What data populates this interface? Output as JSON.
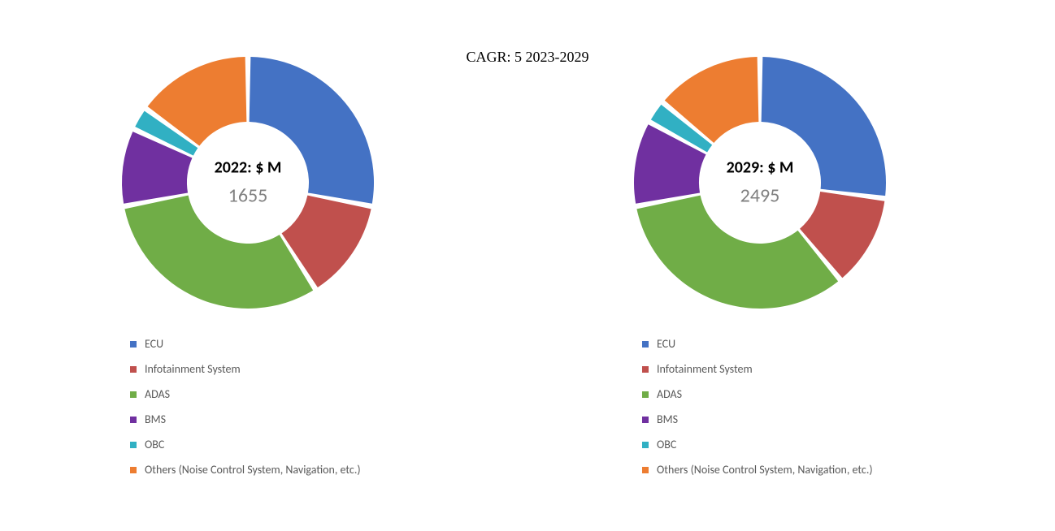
{
  "cagr_text": "CAGR:   5        2023-2029",
  "charts": [
    {
      "id": "chart_2022",
      "type": "donut",
      "center_label": "2022: $ M",
      "center_value": "1655",
      "background_color": "#ffffff",
      "outer_radius": 155,
      "inner_radius": 75,
      "slice_gap_deg": 2.5,
      "start_angle_deg": -90,
      "center_label_fontsize": 20,
      "center_value_fontsize": 24,
      "center_value_color": "#808080",
      "legend_fontsize": 14,
      "legend_color": "#595959",
      "slices": [
        {
          "label": "ECU",
          "value": 28,
          "color": "#4472c4"
        },
        {
          "label": "Infotainment System",
          "value": 13,
          "color": "#c0504d"
        },
        {
          "label": "ADAS",
          "value": 31,
          "color": "#70ad47"
        },
        {
          "label": "BMS",
          "value": 10,
          "color": "#7030a0"
        },
        {
          "label": "OBC",
          "value": 3,
          "color": "#31b0c3"
        },
        {
          "label": "Others (Noise Control System, Navigation, etc.)",
          "value": 15,
          "color": "#ed7d31"
        }
      ]
    },
    {
      "id": "chart_2029",
      "type": "donut",
      "center_label": "2029: $ M",
      "center_value": "2495",
      "background_color": "#ffffff",
      "outer_radius": 155,
      "inner_radius": 75,
      "slice_gap_deg": 2.5,
      "start_angle_deg": -90,
      "center_label_fontsize": 20,
      "center_value_fontsize": 24,
      "center_value_color": "#808080",
      "legend_fontsize": 14,
      "legend_color": "#595959",
      "slices": [
        {
          "label": "ECU",
          "value": 27,
          "color": "#4472c4"
        },
        {
          "label": "Infotainment System",
          "value": 12,
          "color": "#c0504d"
        },
        {
          "label": "ADAS",
          "value": 33,
          "color": "#70ad47"
        },
        {
          "label": "BMS",
          "value": 11,
          "color": "#7030a0"
        },
        {
          "label": "OBC",
          "value": 3,
          "color": "#31b0c3"
        },
        {
          "label": "Others (Noise Control System, Navigation, etc.)",
          "value": 14,
          "color": "#ed7d31"
        }
      ]
    }
  ]
}
